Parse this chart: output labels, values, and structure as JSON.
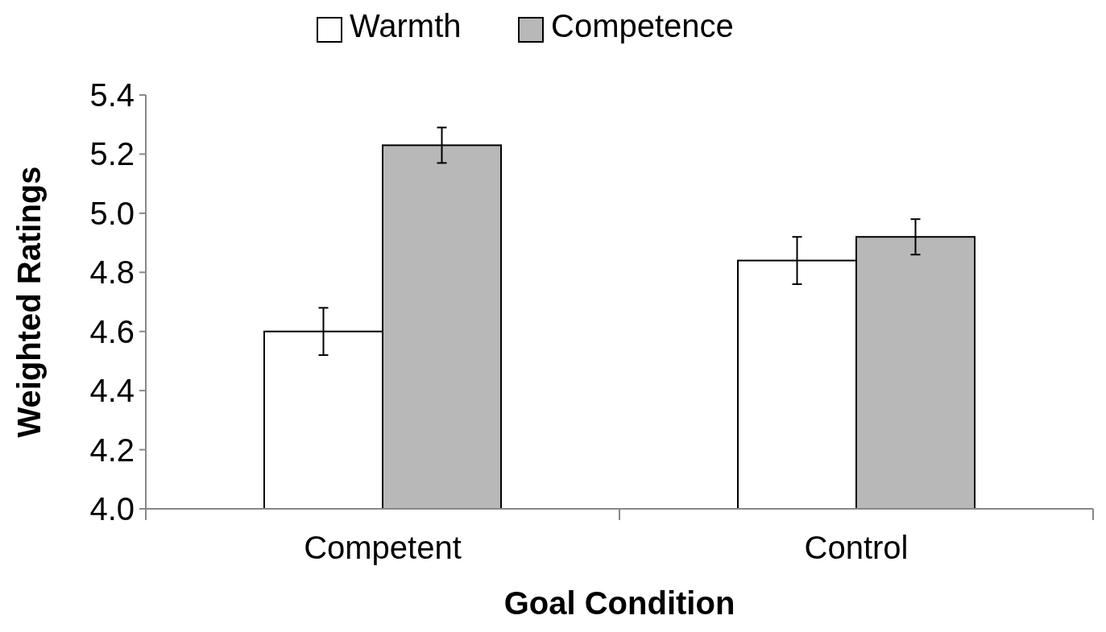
{
  "chart_data": {
    "type": "bar",
    "xlabel": "Goal Condition",
    "ylabel": "Weighted Ratings",
    "categories": [
      "Competent",
      "Control"
    ],
    "series": [
      {
        "name": "Warmth",
        "color": "#ffffff",
        "values": [
          4.6,
          4.84
        ],
        "errors": [
          0.08,
          0.08
        ]
      },
      {
        "name": "Competence",
        "color": "#b8b8b8",
        "values": [
          5.23,
          4.92
        ],
        "errors": [
          0.06,
          0.06
        ]
      }
    ],
    "ylim": [
      4.0,
      5.4
    ],
    "yticks": [
      {
        "value": 4.0,
        "label": "4.0"
      },
      {
        "value": 4.2,
        "label": "4.2"
      },
      {
        "value": 4.4,
        "label": "4.4"
      },
      {
        "value": 4.6,
        "label": "4.6"
      },
      {
        "value": 4.8,
        "label": "4.8"
      },
      {
        "value": 5.0,
        "label": "5.0"
      },
      {
        "value": 5.2,
        "label": "5.2"
      },
      {
        "value": 5.4,
        "label": "5.4"
      }
    ],
    "legend": "top",
    "grid": false
  }
}
